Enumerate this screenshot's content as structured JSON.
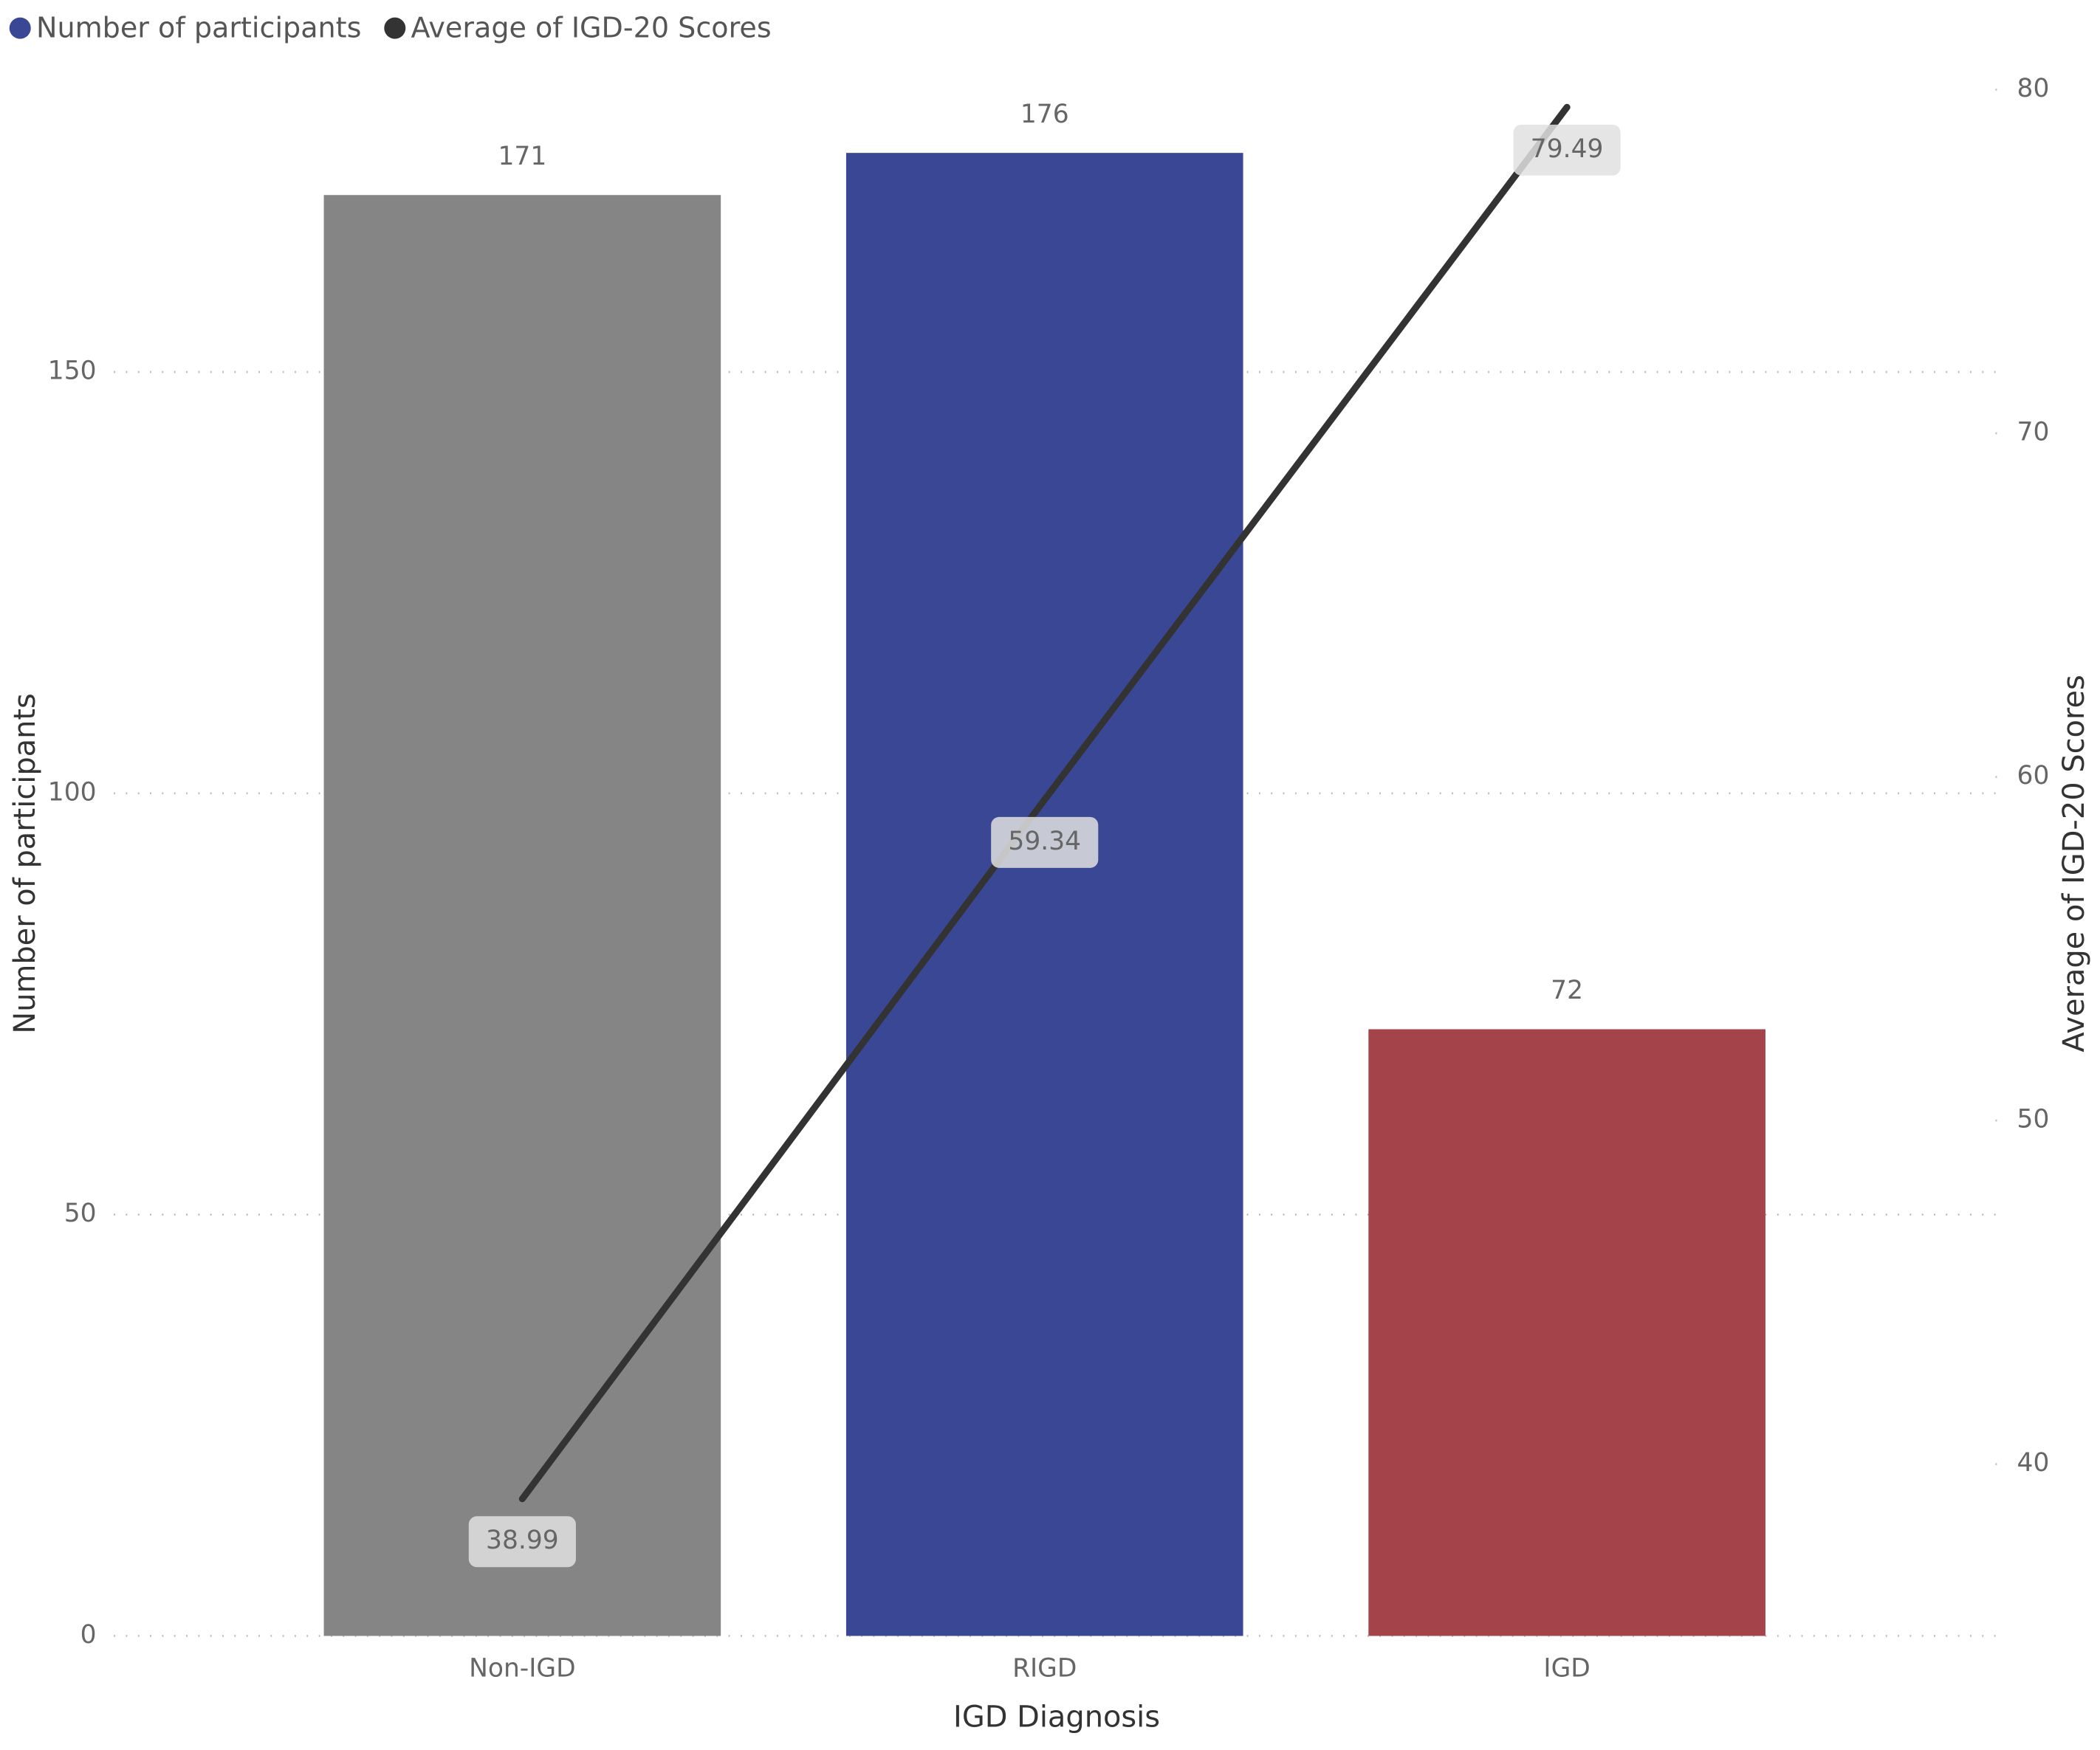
{
  "chart_data": {
    "type": "combo",
    "x_label": "IGD Diagnosis",
    "y_label": "Number of participants",
    "y2_label": "Average of IGD-20 Scores",
    "categories": [
      "Non-IGD",
      "RIGD",
      "IGD"
    ],
    "series": [
      {
        "name": "Number of participants",
        "type": "bar",
        "color": "#3a4794",
        "colors": [
          "#858585",
          "#3a4794",
          "#a4434a"
        ],
        "values": [
          171,
          176,
          72
        ]
      },
      {
        "name": "Average of IGD-20 Scores",
        "type": "line",
        "axis": "y2",
        "color": "#333333",
        "values": [
          38.99,
          59.34,
          79.49
        ]
      }
    ],
    "ylim": [
      0,
      183.5
    ],
    "yticks": [
      0,
      50,
      100,
      150
    ],
    "y2lim": [
      35,
      80
    ],
    "y2ticks": [
      40,
      50,
      60,
      70,
      80
    ],
    "grid": true,
    "legend": "top-left"
  }
}
